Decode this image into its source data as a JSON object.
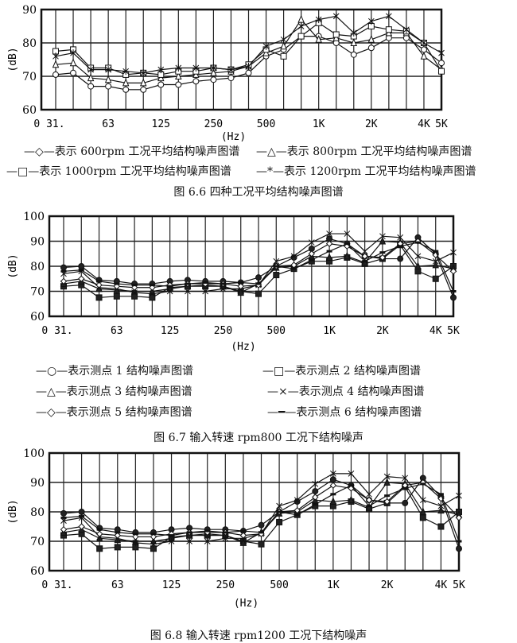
{
  "chart_data": [
    {
      "type": "line",
      "caption": "图 6.6 四种工况平均结构噪声图谱",
      "ylabel": "(dB)",
      "xlabel": "(Hz)",
      "ylim": [
        60,
        90
      ],
      "yticks": [
        60,
        70,
        80,
        90
      ],
      "x": [
        "31.5",
        "40",
        "50",
        "63",
        "80",
        "100",
        "125",
        "160",
        "200",
        "250",
        "315",
        "400",
        "500",
        "630",
        "800",
        "1K",
        "1.25K",
        "1.6K",
        "2K",
        "2.5K",
        "3.15K",
        "4K",
        "5K"
      ],
      "xtick_labels": [
        {
          "i": 0,
          "t": "0 31."
        },
        {
          "i": 3,
          "t": "63"
        },
        {
          "i": 6,
          "t": "125"
        },
        {
          "i": 9,
          "t": "250"
        },
        {
          "i": 12,
          "t": "500"
        },
        {
          "i": 15,
          "t": "1K"
        },
        {
          "i": 18,
          "t": "2K"
        },
        {
          "i": 21,
          "t": "4K"
        },
        {
          "i": 22,
          "t": "5K"
        }
      ],
      "grid": true,
      "series": [
        {
          "name": "表示 600rpm 工况平均结构噪声图谱",
          "marker": "circle",
          "legend_symbol": "—◇—",
          "values": [
            70.5,
            71,
            67,
            67,
            66,
            66,
            67.5,
            67.5,
            68.5,
            69,
            69.5,
            71,
            76,
            78,
            82,
            82,
            80,
            76.5,
            78.5,
            81.5,
            81.5,
            78,
            74
          ]
        },
        {
          "name": "表示 800rpm 工况平均结构噪声图谱",
          "marker": "triangle",
          "legend_symbol": "—△—",
          "values": [
            73.5,
            74,
            69.5,
            69,
            68,
            68,
            69.5,
            70,
            70.5,
            71,
            71.5,
            73,
            77,
            79,
            87,
            81,
            81.5,
            80,
            81,
            83,
            83,
            76,
            72
          ]
        },
        {
          "name": "表示 1000rpm 工况平均结构噪声图谱",
          "marker": "square",
          "legend_symbol": "—□—",
          "values": [
            77.5,
            78,
            72.5,
            72.5,
            70.5,
            71,
            70.5,
            71.5,
            71.5,
            72.5,
            72,
            73.5,
            78,
            76,
            82,
            86,
            82.5,
            82,
            85,
            84,
            83.5,
            80,
            71.5
          ]
        },
        {
          "name": "表示 1200rpm 工况平均结构噪声图谱",
          "marker": "star",
          "legend_symbol": "—*—",
          "values": [
            76,
            77,
            72,
            72,
            71.5,
            71,
            72,
            72.5,
            72.5,
            72.5,
            72,
            73,
            79,
            81,
            85,
            87,
            88,
            83,
            86.5,
            88,
            84,
            80,
            77
          ]
        }
      ]
    },
    {
      "type": "line",
      "caption": "图 6.7 输入转速 rpm800 工况下结构噪声",
      "ylabel": "(dB)",
      "xlabel": "(Hz)",
      "ylim": [
        60,
        100
      ],
      "yticks": [
        60,
        70,
        80,
        90,
        100
      ],
      "x": [
        "31.5",
        "40",
        "50",
        "63",
        "80",
        "100",
        "125",
        "160",
        "200",
        "250",
        "315",
        "400",
        "500",
        "630",
        "800",
        "1K",
        "1.25K",
        "1.6K",
        "2K",
        "2.5K",
        "3.15K",
        "4K",
        "5K"
      ],
      "xtick_labels": [
        {
          "i": 0,
          "t": "0 31."
        },
        {
          "i": 3,
          "t": "63"
        },
        {
          "i": 6,
          "t": "125"
        },
        {
          "i": 9,
          "t": "250"
        },
        {
          "i": 12,
          "t": "500"
        },
        {
          "i": 15,
          "t": "1K"
        },
        {
          "i": 18,
          "t": "2K"
        },
        {
          "i": 21,
          "t": "4K"
        },
        {
          "i": 22,
          "t": "5K"
        }
      ],
      "grid": true,
      "series": [
        {
          "name": "表示测点 1 结构噪声图谱",
          "marker": "circle",
          "legend_symbol": "—○—",
          "values": [
            79.5,
            80,
            74.5,
            74,
            73,
            73,
            74,
            74.5,
            74,
            74,
            73.5,
            75.5,
            80,
            83.5,
            87,
            91,
            89,
            84,
            83,
            83,
            91.5,
            85,
            67.5
          ]
        },
        {
          "name": "表示测点 2 结构噪声图谱",
          "marker": "square",
          "legend_symbol": "—□—",
          "values": [
            72,
            72.5,
            67.5,
            68,
            68,
            67.5,
            71.5,
            72,
            72,
            72,
            70,
            69,
            76.5,
            79,
            82,
            82,
            83.5,
            81,
            83,
            88.5,
            78,
            75,
            80
          ]
        },
        {
          "name": "表示测点 3 结构噪声图谱",
          "marker": "triangle",
          "legend_symbol": "—△—",
          "values": [
            73,
            74,
            71,
            70.5,
            70,
            70,
            71,
            72,
            72.5,
            72,
            69.5,
            73,
            79.5,
            80,
            84,
            83.5,
            84,
            81.5,
            90,
            89.5,
            80,
            80.5,
            79
          ]
        },
        {
          "name": "表示测点 4 结构噪声图谱",
          "marker": "x",
          "legend_symbol": "—×—",
          "values": [
            77,
            78,
            71.5,
            71,
            69.5,
            69,
            70,
            70,
            70,
            71,
            71,
            72.5,
            82,
            84,
            89.5,
            93,
            93,
            86,
            92,
            91.5,
            84,
            82,
            85.5
          ]
        },
        {
          "name": "表示测点 5 结构噪声图谱",
          "marker": "diamond",
          "legend_symbol": "—◇—",
          "values": [
            74,
            75,
            72.5,
            72,
            71.5,
            71.5,
            72.5,
            73,
            73,
            73,
            72,
            72.5,
            80,
            80.5,
            85,
            89,
            88,
            84,
            83.5,
            89,
            90,
            84.5,
            78
          ]
        },
        {
          "name": "表示测点 6 结构噪声图谱",
          "marker": "dash",
          "legend_symbol": "—━—",
          "values": [
            78,
            78.5,
            74,
            73,
            72.5,
            72.5,
            72,
            73,
            73.5,
            73,
            73.5,
            73,
            80,
            79,
            82.5,
            86,
            89,
            82,
            85.5,
            88,
            89.5,
            86,
            70
          ]
        }
      ]
    },
    {
      "type": "line",
      "caption": "图 6.8 输入转速 rpm1200 工况下结构噪声",
      "ylabel": "(dB)",
      "xlabel": "(Hz)",
      "ylim": [
        60,
        100
      ],
      "yticks": [
        60,
        70,
        80,
        90,
        100
      ],
      "x": [
        "31.5",
        "40",
        "50",
        "63",
        "80",
        "100",
        "125",
        "160",
        "200",
        "250",
        "315",
        "400",
        "500",
        "630",
        "800",
        "1K",
        "1.25K",
        "1.6K",
        "2K",
        "2.5K",
        "3.15K",
        "4K",
        "5K"
      ],
      "xtick_labels": [
        {
          "i": 0,
          "t": "0 31."
        },
        {
          "i": 3,
          "t": "63"
        },
        {
          "i": 6,
          "t": "125"
        },
        {
          "i": 9,
          "t": "250"
        },
        {
          "i": 12,
          "t": "500"
        },
        {
          "i": 15,
          "t": "1K"
        },
        {
          "i": 18,
          "t": "2K"
        },
        {
          "i": 21,
          "t": "4K"
        },
        {
          "i": 22,
          "t": "5K"
        }
      ],
      "grid": true,
      "series": [
        {
          "marker": "circle",
          "values": [
            79.5,
            80,
            74.5,
            74,
            73,
            73,
            74,
            74.5,
            74,
            74,
            73.5,
            75.5,
            80,
            83.5,
            87,
            91,
            89,
            84,
            83,
            83,
            91.5,
            85,
            67.5
          ]
        },
        {
          "marker": "square",
          "values": [
            72,
            72.5,
            67.5,
            68,
            68,
            67.5,
            71.5,
            72,
            72,
            72,
            70,
            69,
            76.5,
            79,
            82,
            82,
            83.5,
            81,
            83,
            88.5,
            78,
            75,
            80
          ]
        },
        {
          "marker": "triangle",
          "values": [
            73,
            74,
            71,
            70.5,
            70,
            70,
            71,
            72,
            72.5,
            72,
            69.5,
            73,
            79.5,
            80,
            84,
            83.5,
            84,
            81.5,
            90,
            89.5,
            80,
            80.5,
            79
          ]
        },
        {
          "marker": "star",
          "values": [
            77,
            78,
            71.5,
            71,
            69.5,
            69,
            70,
            70,
            70,
            71,
            71,
            72.5,
            82,
            84,
            89.5,
            93,
            93,
            86,
            92,
            91.5,
            84,
            82,
            85.5
          ]
        },
        {
          "marker": "diamond",
          "values": [
            74,
            75,
            72.5,
            72,
            71.5,
            71.5,
            72.5,
            73,
            73,
            73,
            72,
            72.5,
            80,
            80.5,
            85,
            89,
            88,
            84,
            83.5,
            89,
            90,
            84.5,
            78
          ]
        },
        {
          "marker": "dash",
          "values": [
            78,
            78.5,
            74,
            73,
            72.5,
            72.5,
            72,
            73,
            73.5,
            73,
            73.5,
            73,
            80,
            79,
            82.5,
            86,
            89,
            82,
            85.5,
            88,
            89.5,
            86,
            70
          ]
        }
      ]
    }
  ]
}
